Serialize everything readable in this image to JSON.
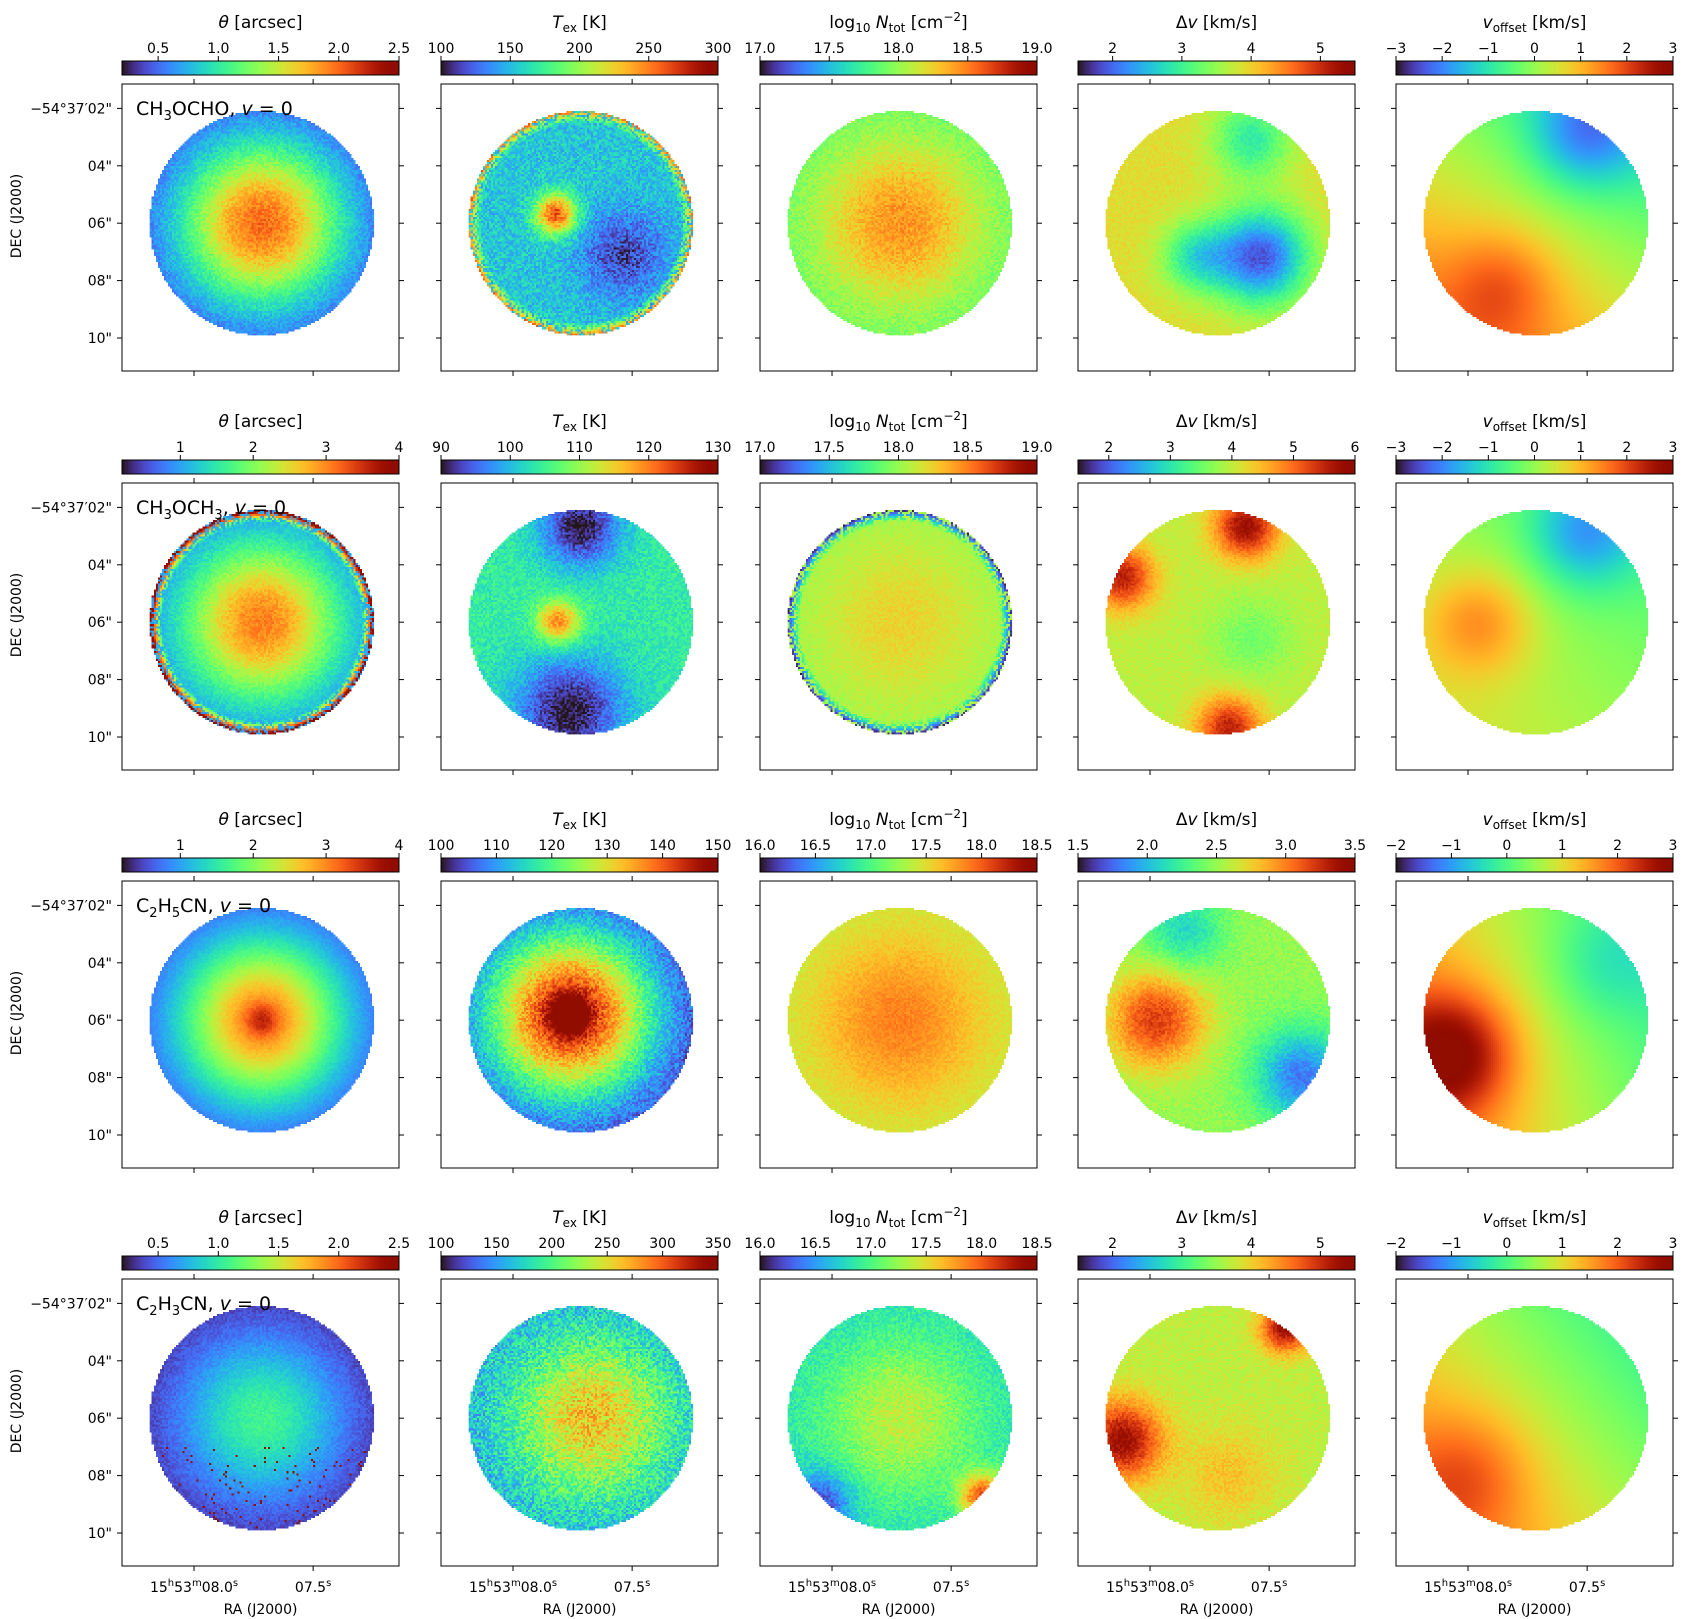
{
  "chart_data": {
    "type": "heatmap",
    "title": "",
    "colormap": "turbo",
    "xlabel": "RA (J2000)",
    "ylabel": "DEC (J2000)",
    "y_ticks": [
      "−54°37′02\"",
      "04\"",
      "06\"",
      "08\"",
      "10\""
    ],
    "y_tick_values_arcsec": [
      2,
      4,
      6,
      8,
      10
    ],
    "x_ticks": [
      {
        "h": "15",
        "m": "53",
        "s": "08.0",
        "label": "15h53m08.0s"
      },
      {
        "h": "",
        "m": "",
        "s": "07.5",
        "label": "07.5s"
      }
    ],
    "columns": [
      {
        "quantity": "theta",
        "colorbar_label": "θ [arcsec]"
      },
      {
        "quantity": "T_ex",
        "colorbar_label": "T_ex [K]"
      },
      {
        "quantity": "log10_N_tot",
        "colorbar_label": "log10 N_tot [cm^-2]"
      },
      {
        "quantity": "delta_v",
        "colorbar_label": "Δv [km/s]"
      },
      {
        "quantity": "v_offset",
        "colorbar_label": "v_offset [km/s]"
      }
    ],
    "rows": [
      {
        "molecule": "CH3OCHO, v=0",
        "panels": [
          {
            "range": [
              0.2,
              2.5
            ],
            "ticks": [
              "0.5",
              "1.0",
              "1.5",
              "2.0",
              "2.5"
            ],
            "tick_values": [
              0.5,
              1.0,
              1.5,
              2.0,
              2.5
            ],
            "pattern": {
              "kind": "radial",
              "peak": 0.78,
              "edge": 0.05,
              "noise": 0.05
            }
          },
          {
            "range": [
              100,
              300
            ],
            "ticks": [
              "100",
              "150",
              "200",
              "250",
              "300"
            ],
            "tick_values": [
              100,
              150,
              200,
              250,
              300
            ],
            "pattern": {
              "kind": "blobs",
              "base": 0.27,
              "noise": 0.08,
              "blobs": [
                {
                  "u": -0.22,
                  "v": -0.08,
                  "s": 0.13,
                  "a": 0.55
                },
                {
                  "u": 0.38,
                  "v": 0.28,
                  "s": 0.28,
                  "a": -0.2
                }
              ],
              "rim": {
                "a": 0.5,
                "w": 0.05
              }
            }
          },
          {
            "range": [
              17.0,
              19.0
            ],
            "ticks": [
              "17.0",
              "17.5",
              "18.0",
              "18.5",
              "19.0"
            ],
            "tick_values": [
              17.0,
              17.5,
              18.0,
              18.5,
              19.0
            ],
            "pattern": {
              "kind": "radial",
              "peak": 0.72,
              "edge": 0.42,
              "noise": 0.05
            }
          },
          {
            "range": [
              1.5,
              5.5
            ],
            "ticks": [
              "2",
              "3",
              "4",
              "5"
            ],
            "tick_values": [
              2,
              3,
              4,
              5
            ],
            "pattern": {
              "kind": "blobs",
              "base": 0.6,
              "noise": 0.03,
              "blobs": [
                {
                  "u": 0.38,
                  "v": 0.3,
                  "s": 0.3,
                  "a": -0.5
                },
                {
                  "u": -0.2,
                  "v": 0.3,
                  "s": 0.22,
                  "a": -0.25
                },
                {
                  "u": 0.3,
                  "v": -0.75,
                  "s": 0.25,
                  "a": -0.25
                }
              ]
            }
          },
          {
            "range": [
              -3,
              3
            ],
            "ticks": [
              "−3",
              "−2",
              "−1",
              "0",
              "1",
              "2",
              "3"
            ],
            "tick_values": [
              -3,
              -2,
              -1,
              0,
              1,
              2,
              3
            ],
            "pattern": {
              "kind": "gradient",
              "base": 0.55,
              "gu": -0.1,
              "gv": 0.15,
              "noise": 0.0,
              "blobs": [
                {
                  "u": 0.45,
                  "v": -0.8,
                  "s": 0.35,
                  "a": -0.25
                },
                {
                  "u": -0.3,
                  "v": 0.55,
                  "s": 0.35,
                  "a": 0.15
                }
              ]
            }
          }
        ]
      },
      {
        "molecule": "CH3OCH3, v=0",
        "panels": [
          {
            "range": [
              0.2,
              4.0
            ],
            "ticks": [
              "1",
              "2",
              "3",
              "4"
            ],
            "tick_values": [
              1,
              2,
              3,
              4
            ],
            "pattern": {
              "kind": "radial",
              "peak": 0.75,
              "edge": 0.1,
              "noise": 0.04,
              "rim": {
                "a": 0.9,
                "w": 0.05
              }
            }
          },
          {
            "range": [
              90,
              130
            ],
            "ticks": [
              "90",
              "100",
              "110",
              "120",
              "130"
            ],
            "tick_values": [
              90,
              100,
              110,
              120,
              130
            ],
            "pattern": {
              "kind": "blobs",
              "base": 0.35,
              "noise": 0.06,
              "blobs": [
                {
                  "u": -0.2,
                  "v": 0.0,
                  "s": 0.14,
                  "a": 0.4
                },
                {
                  "u": 0.0,
                  "v": -0.85,
                  "s": 0.25,
                  "a": -0.35
                },
                {
                  "u": -0.1,
                  "v": 0.8,
                  "s": 0.35,
                  "a": -0.35
                }
              ]
            }
          },
          {
            "range": [
              17.0,
              19.0
            ],
            "ticks": [
              "17.0",
              "17.5",
              "18.0",
              "18.5",
              "19.0"
            ],
            "tick_values": [
              17.0,
              17.5,
              18.0,
              18.5,
              19.0
            ],
            "pattern": {
              "kind": "radial",
              "peak": 0.62,
              "edge": 0.5,
              "noise": 0.03,
              "rim": {
                "a": -0.5,
                "w": 0.05
              }
            }
          },
          {
            "range": [
              1.5,
              6.0
            ],
            "ticks": [
              "2",
              "3",
              "4",
              "5",
              "6"
            ],
            "tick_values": [
              2,
              3,
              4,
              5,
              6
            ],
            "pattern": {
              "kind": "blobs",
              "base": 0.55,
              "noise": 0.03,
              "blobs": [
                {
                  "u": 0.25,
                  "v": -0.85,
                  "s": 0.2,
                  "a": 0.4
                },
                {
                  "u": -0.85,
                  "v": -0.4,
                  "s": 0.2,
                  "a": 0.35
                },
                {
                  "u": 0.1,
                  "v": 0.95,
                  "s": 0.2,
                  "a": 0.35
                },
                {
                  "u": 0.3,
                  "v": 0.15,
                  "s": 0.25,
                  "a": -0.1
                }
              ]
            }
          },
          {
            "range": [
              -3,
              3
            ],
            "ticks": [
              "−3",
              "−2",
              "−1",
              "0",
              "1",
              "2",
              "3"
            ],
            "tick_values": [
              -3,
              -2,
              -1,
              0,
              1,
              2,
              3
            ],
            "pattern": {
              "kind": "gradient",
              "base": 0.5,
              "gu": -0.05,
              "gv": 0.05,
              "noise": 0.0,
              "blobs": [
                {
                  "u": -0.5,
                  "v": 0.0,
                  "s": 0.35,
                  "a": 0.2
                },
                {
                  "u": 0.45,
                  "v": -0.8,
                  "s": 0.35,
                  "a": -0.25
                }
              ]
            }
          }
        ]
      },
      {
        "molecule": "C2H5CN, v=0",
        "panels": [
          {
            "range": [
              0.2,
              4.0
            ],
            "ticks": [
              "1",
              "2",
              "3",
              "4"
            ],
            "tick_values": [
              1,
              2,
              3,
              4
            ],
            "pattern": {
              "kind": "radial",
              "peak": 0.75,
              "edge": 0.05,
              "noise": 0.02,
              "core": 0.15
            }
          },
          {
            "range": [
              100,
              150
            ],
            "ticks": [
              "100",
              "110",
              "120",
              "130",
              "140",
              "150"
            ],
            "tick_values": [
              100,
              110,
              120,
              130,
              140,
              150
            ],
            "pattern": {
              "kind": "radial",
              "peak": 0.92,
              "edge": 0.02,
              "noise": 0.08,
              "cu": -0.1,
              "cv": -0.05,
              "core": 0.55
            }
          },
          {
            "range": [
              16.0,
              18.5
            ],
            "ticks": [
              "16.0",
              "16.5",
              "17.0",
              "17.5",
              "18.0",
              "18.5"
            ],
            "tick_values": [
              16.0,
              16.5,
              17.0,
              17.5,
              18.0,
              18.5
            ],
            "pattern": {
              "kind": "radial",
              "peak": 0.75,
              "edge": 0.55,
              "noise": 0.03
            }
          },
          {
            "range": [
              1.5,
              3.5
            ],
            "ticks": [
              "1.5",
              "2.0",
              "2.5",
              "3.0",
              "3.5"
            ],
            "tick_values": [
              1.5,
              2.0,
              2.5,
              3.0,
              3.5
            ],
            "pattern": {
              "kind": "blobs",
              "base": 0.5,
              "noise": 0.04,
              "blobs": [
                {
                  "u": -0.55,
                  "v": 0.0,
                  "s": 0.3,
                  "a": 0.35
                },
                {
                  "u": 0.75,
                  "v": 0.5,
                  "s": 0.3,
                  "a": -0.35
                },
                {
                  "u": -0.3,
                  "v": -0.8,
                  "s": 0.25,
                  "a": -0.2
                }
              ]
            }
          },
          {
            "range": [
              -2,
              3
            ],
            "ticks": [
              "−2",
              "−1",
              "0",
              "1",
              "2",
              "3"
            ],
            "tick_values": [
              -2,
              -1,
              0,
              1,
              2,
              3
            ],
            "pattern": {
              "kind": "gradient",
              "base": 0.55,
              "gu": -0.15,
              "gv": 0.05,
              "noise": 0.0,
              "blobs": [
                {
                  "u": -0.75,
                  "v": 0.3,
                  "s": 0.4,
                  "a": 0.35
                },
                {
                  "u": 0.6,
                  "v": -0.5,
                  "s": 0.35,
                  "a": -0.1
                }
              ]
            }
          }
        ]
      },
      {
        "molecule": "C2H3CN, v=0",
        "panels": [
          {
            "range": [
              0.2,
              2.5
            ],
            "ticks": [
              "0.5",
              "1.0",
              "1.5",
              "2.0",
              "2.5"
            ],
            "tick_values": [
              0.5,
              1.0,
              1.5,
              2.0,
              2.5
            ],
            "pattern": {
              "kind": "radial",
              "peak": 0.38,
              "edge": 0.02,
              "noise": 0.03,
              "speckle": 0.03
            }
          },
          {
            "range": [
              100,
              350
            ],
            "ticks": [
              "100",
              "150",
              "200",
              "250",
              "300",
              "350"
            ],
            "tick_values": [
              100,
              150,
              200,
              250,
              300,
              350
            ],
            "pattern": {
              "kind": "radial",
              "peak": 0.65,
              "edge": 0.2,
              "noise": 0.12,
              "cu": 0.1,
              "cv": 0.0
            }
          },
          {
            "range": [
              16.0,
              18.5
            ],
            "ticks": [
              "16.0",
              "16.5",
              "17.0",
              "17.5",
              "18.0",
              "18.5"
            ],
            "tick_values": [
              16.0,
              16.5,
              17.0,
              17.5,
              18.0,
              18.5
            ],
            "pattern": {
              "kind": "radial",
              "peak": 0.55,
              "edge": 0.3,
              "noise": 0.06,
              "blobs": [
                {
                  "u": 0.75,
                  "v": 0.7,
                  "s": 0.15,
                  "a": 0.5
                },
                {
                  "u": -0.7,
                  "v": 0.75,
                  "s": 0.2,
                  "a": -0.25
                }
              ]
            }
          },
          {
            "range": [
              1.5,
              5.5
            ],
            "ticks": [
              "2",
              "3",
              "4",
              "5"
            ],
            "tick_values": [
              2,
              3,
              4,
              5
            ],
            "pattern": {
              "kind": "blobs",
              "base": 0.55,
              "noise": 0.04,
              "blobs": [
                {
                  "u": -0.85,
                  "v": 0.2,
                  "s": 0.25,
                  "a": 0.4
                },
                {
                  "u": 0.6,
                  "v": -0.8,
                  "s": 0.15,
                  "a": 0.4
                },
                {
                  "u": 0.1,
                  "v": 0.5,
                  "s": 0.3,
                  "a": 0.1
                }
              ]
            }
          },
          {
            "range": [
              -2,
              3
            ],
            "ticks": [
              "−2",
              "−1",
              "0",
              "1",
              "2",
              "3"
            ],
            "tick_values": [
              -2,
              -1,
              0,
              1,
              2,
              3
            ],
            "pattern": {
              "kind": "gradient",
              "base": 0.55,
              "gu": -0.12,
              "gv": 0.1,
              "noise": 0.0,
              "blobs": [
                {
                  "u": -0.6,
                  "v": 0.5,
                  "s": 0.4,
                  "a": 0.15
                }
              ]
            }
          }
        ]
      }
    ]
  }
}
